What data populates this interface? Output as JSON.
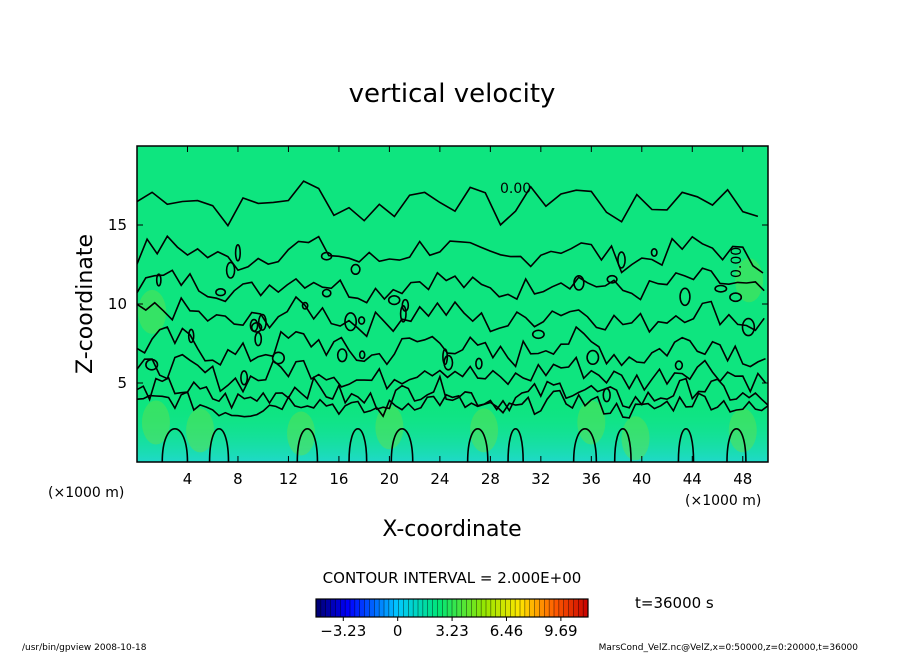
{
  "chart_data": {
    "type": "heatmap",
    "title": "vertical velocity",
    "xlabel": "X-coordinate",
    "ylabel": "Z-coordinate",
    "x_unit": "(×1000 m)",
    "x_unit_right": "(×1000 m)",
    "xlim": [
      0,
      50
    ],
    "ylim": [
      0,
      20
    ],
    "x_ticks": [
      4,
      8,
      12,
      16,
      20,
      24,
      28,
      32,
      36,
      40,
      44,
      48
    ],
    "y_ticks": [
      5,
      10,
      15
    ],
    "contour_label": "0.00",
    "contour_interval_text": "CONTOUR INTERVAL = 2.000E+00",
    "time_text": "t=36000 s",
    "colorbar": {
      "min": -4.85,
      "max": 11.3,
      "ticks": [
        -3.23,
        0,
        3.23,
        6.46,
        9.69
      ],
      "tick_labels": [
        "−3.23",
        "0",
        "3.23",
        "6.46",
        "9.69"
      ]
    },
    "colors": {
      "background_field": "#0ee57f",
      "near_ground_band": "#1fd9c9",
      "updraft_core": "#66e048",
      "contour_line": "#000000"
    }
  },
  "footer": {
    "left": "/usr/bin/gpview   2008-10-18",
    "right": "MarsCond_VelZ.nc@VelZ,x=0:50000,z=0:20000,t=36000"
  }
}
